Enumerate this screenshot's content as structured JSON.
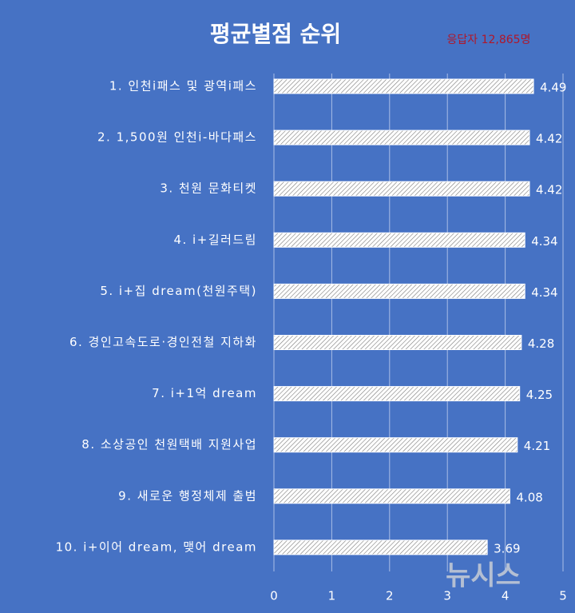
{
  "chart_data": {
    "type": "bar",
    "orientation": "horizontal",
    "title": "평균별점 순위",
    "subtitle": "응답자 12,865명",
    "watermark": "뉴시스",
    "categories": [
      "1. 인천i패스 및 광역i패스",
      "2. 1,500원 인천i-바다패스",
      "3. 천원 문화티켓",
      "4. i+길러드림",
      "5. i+집 dream(천원주택)",
      "6. 경인고속도로·경인전철 지하화",
      "7. i+1억 dream",
      "8. 소상공인 천원택배 지원사업",
      "9. 새로운 행정체제 출범",
      "10. i+이어 dream, 맺어 dream"
    ],
    "values": [
      4.49,
      4.42,
      4.42,
      4.34,
      4.34,
      4.28,
      4.25,
      4.21,
      4.08,
      3.69
    ],
    "color": "#ffffff",
    "xlim": [
      0,
      5
    ],
    "xticks": [
      0,
      1,
      2,
      3,
      4,
      5
    ],
    "grid": true
  }
}
